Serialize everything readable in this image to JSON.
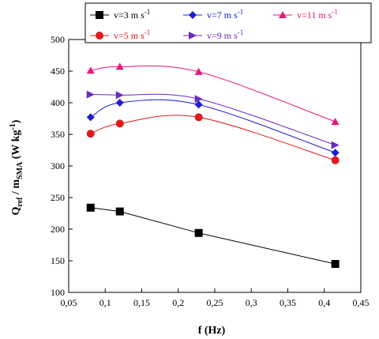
{
  "chart_data": {
    "type": "line",
    "title": "",
    "xlabel": {
      "main": "f",
      "unit": " (Hz)"
    },
    "ylabel": {
      "q": "Q",
      "q_sub": "ref",
      "slash": " / m",
      "m_sub": "SMA",
      "unit": " (W kg",
      "exp": "-1",
      "close": ")"
    },
    "xlim": [
      0.05,
      0.45
    ],
    "ylim": [
      100,
      500
    ],
    "x_ticks": [
      0.05,
      0.1,
      0.15,
      0.2,
      0.25,
      0.3,
      0.35,
      0.4,
      0.45
    ],
    "x_tick_labels": [
      "0,05",
      "0,1",
      "0,15",
      "0,2",
      "0,25",
      "0,3",
      "0,35",
      "0,4",
      "0,45"
    ],
    "y_ticks": [
      100,
      150,
      200,
      250,
      300,
      350,
      400,
      450,
      500
    ],
    "y_tick_labels": [
      "100",
      "150",
      "200",
      "250",
      "300",
      "350",
      "400",
      "450",
      "500"
    ],
    "grid": false,
    "legend_position": "top",
    "series": [
      {
        "key": "v3",
        "label_main": "v=3 m s",
        "label_exp": "-1",
        "color": "#000000",
        "marker": "square",
        "points": [
          [
            0.08,
            234
          ],
          [
            0.12,
            228
          ],
          [
            0.228,
            194
          ],
          [
            0.415,
            145
          ]
        ]
      },
      {
        "key": "v7",
        "label_main": "v=7 m s",
        "label_exp": "-1",
        "color": "#1c1cd6",
        "marker": "diamond",
        "points": [
          [
            0.08,
            377
          ],
          [
            0.12,
            400
          ],
          [
            0.228,
            397
          ],
          [
            0.415,
            321
          ]
        ]
      },
      {
        "key": "v11",
        "label_main": "v=11 m s",
        "label_exp": "-1",
        "color": "#e6197a",
        "marker": "triangle",
        "points": [
          [
            0.08,
            451
          ],
          [
            0.12,
            457
          ],
          [
            0.228,
            449
          ],
          [
            0.415,
            370
          ]
        ]
      },
      {
        "key": "v5",
        "label_main": "v=5 m s",
        "label_exp": "-1",
        "color": "#e11a1a",
        "marker": "circle",
        "points": [
          [
            0.08,
            351
          ],
          [
            0.12,
            367
          ],
          [
            0.228,
            377
          ],
          [
            0.415,
            309
          ]
        ]
      },
      {
        "key": "v9",
        "label_main": "v=9 m s",
        "label_exp": "-1",
        "color": "#6a2bc0",
        "marker": "halftriangle",
        "points": [
          [
            0.08,
            413
          ],
          [
            0.12,
            412
          ],
          [
            0.228,
            406
          ],
          [
            0.415,
            333
          ]
        ]
      }
    ]
  }
}
